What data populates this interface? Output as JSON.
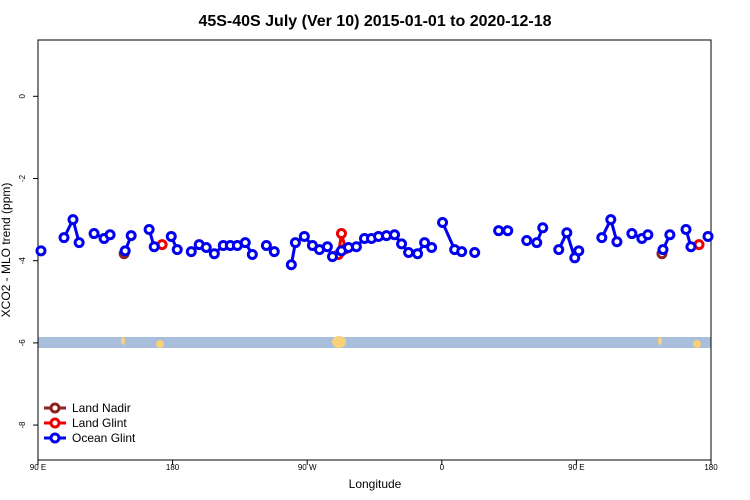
{
  "chart_data": {
    "type": "line",
    "title": "45S-40S July (Ver 10)   2015-01-01 to 2020-12-18",
    "x_label": "Longitude",
    "y_label": "XCO2 - MLO trend (ppm)",
    "xlim": [
      90,
      540
    ],
    "xticks": [
      {
        "value": 90,
        "label": "90 E"
      },
      180,
      {
        "value": 270,
        "label": "90 W"
      },
      {
        "value": 360,
        "label": "0"
      },
      {
        "value": 450,
        "label": "90 E"
      },
      {
        "value": 540,
        "label": "180"
      }
    ],
    "ylim": [
      -8.85,
      1.37
    ],
    "yticks": [
      0,
      -2,
      -4,
      -6,
      -8
    ],
    "legend": "bottom-left",
    "series": [
      {
        "name": "Land Nadir",
        "color": "#8b2323",
        "x": [
          147.6,
          null,
          507.2
        ],
        "values": [
          -3.83,
          null,
          -3.83
        ]
      },
      {
        "name": "Land Glint",
        "color": "#ee0000",
        "x": [
          173.0,
          null,
          290.9,
          292.9,
          295.6,
          null,
          532.0
        ],
        "values": [
          -3.61,
          null,
          -3.85,
          -3.34,
          -3.71,
          null,
          -3.61
        ]
      },
      {
        "name": "Ocean Glint",
        "color": "#0000ee",
        "x": [
          92.0,
          null,
          107.4,
          113.4,
          117.5,
          null,
          127.5,
          134.2,
          138.2,
          null,
          148.3,
          152.3,
          null,
          164.3,
          167.7,
          null,
          179.1,
          183.1,
          null,
          192.5,
          197.8,
          202.5,
          207.9,
          213.9,
          218.6,
          223.3,
          228.6,
          233.3,
          null,
          242.7,
          248.0,
          null,
          259.4,
          262.1,
          268.1,
          273.5,
          278.2,
          283.5,
          286.9,
          292.9,
          297.6,
          302.9,
          308.3,
          313.0,
          317.7,
          323.0,
          328.4,
          333.1,
          337.8,
          343.8,
          348.5,
          353.2,
          null,
          360.5,
          368.6,
          373.3,
          null,
          382.0,
          null,
          398.0,
          404.1,
          null,
          416.8,
          423.5,
          427.5,
          null,
          438.2,
          443.6,
          448.9,
          451.6,
          null,
          467.0,
          473.0,
          477.1,
          null,
          487.1,
          493.8,
          497.8,
          null,
          507.9,
          512.5,
          null,
          523.3,
          526.6,
          null,
          538.0
        ],
        "values": [
          -3.76,
          null,
          -3.44,
          -3.0,
          -3.56,
          null,
          -3.34,
          -3.46,
          -3.37,
          null,
          -3.76,
          -3.39,
          null,
          -3.24,
          -3.66,
          null,
          -3.41,
          -3.73,
          null,
          -3.78,
          -3.61,
          -3.68,
          -3.83,
          -3.63,
          -3.63,
          -3.63,
          -3.56,
          -3.85,
          null,
          -3.63,
          -3.78,
          null,
          -4.1,
          -3.56,
          -3.41,
          -3.63,
          -3.73,
          -3.66,
          -3.9,
          -3.76,
          -3.68,
          -3.66,
          -3.46,
          -3.46,
          -3.41,
          -3.39,
          -3.37,
          -3.59,
          -3.8,
          -3.83,
          -3.56,
          -3.68,
          null,
          -3.07,
          -3.73,
          -3.78,
          null,
          -3.8,
          null,
          -3.27,
          -3.27,
          null,
          -3.51,
          -3.56,
          -3.2,
          null,
          -3.73,
          -3.32,
          -3.93,
          -3.76,
          null,
          -3.44,
          -3.0,
          -3.54,
          null,
          -3.34,
          -3.46,
          -3.37,
          null,
          -3.73,
          -3.37,
          null,
          -3.24,
          -3.66,
          null,
          -3.41
        ]
      }
    ]
  }
}
